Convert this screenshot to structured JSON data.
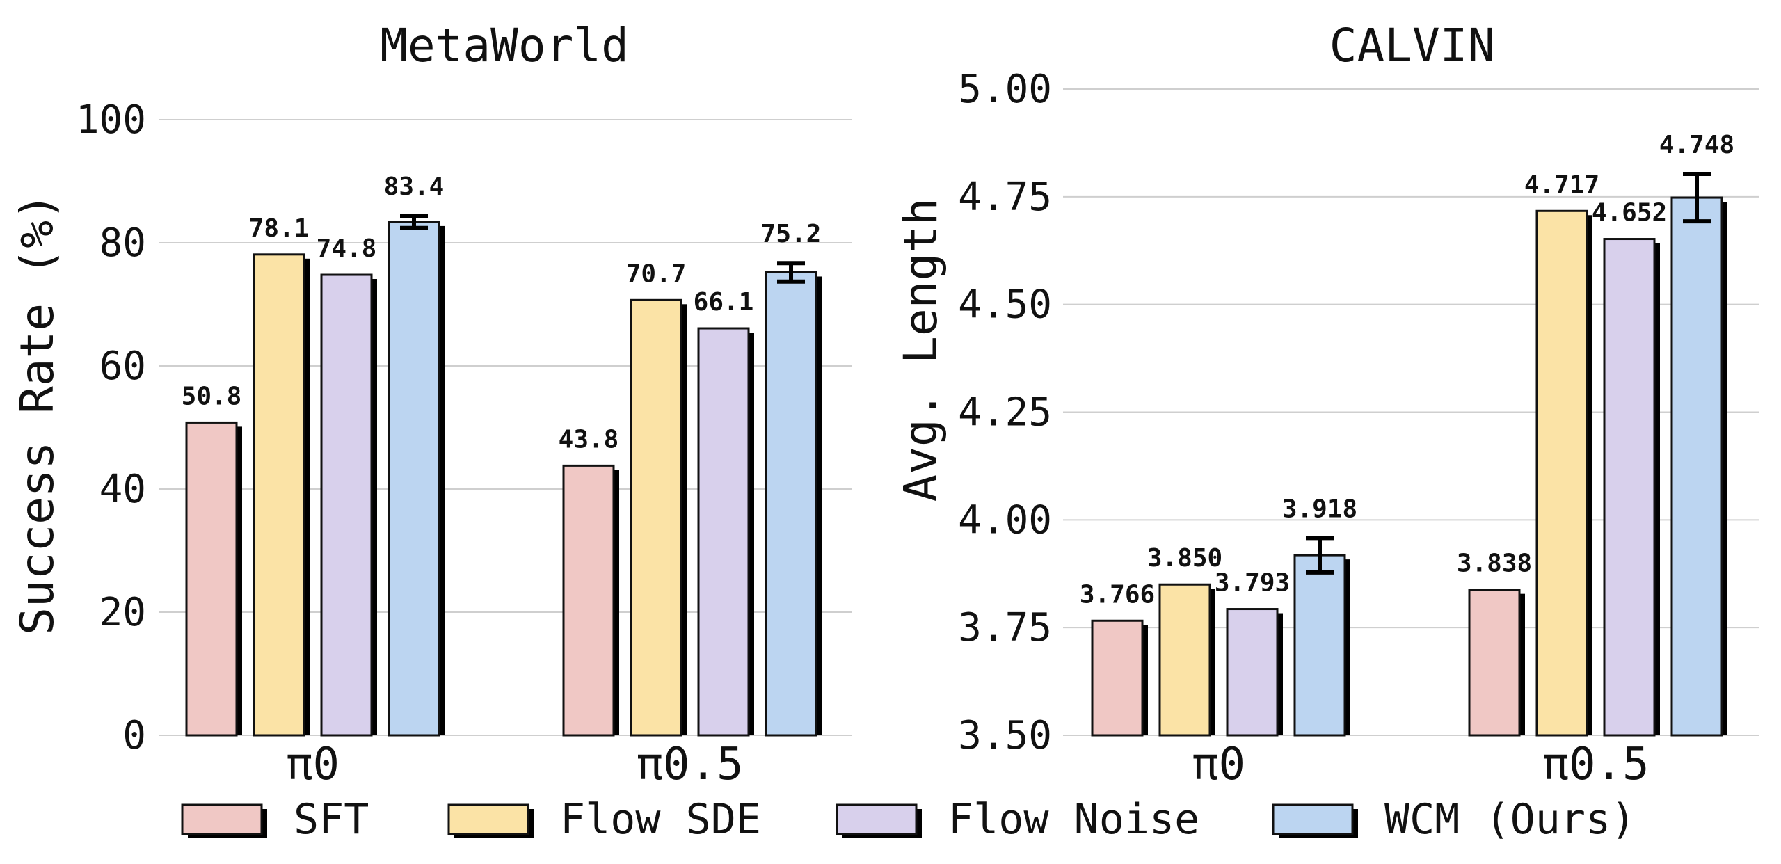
{
  "legend": [
    {
      "label": "SFT",
      "color": "#f0c8c5"
    },
    {
      "label": "Flow SDE",
      "color": "#fbe3a6"
    },
    {
      "label": "Flow Noise",
      "color": "#d8d0ec"
    },
    {
      "label": "WCM (Ours)",
      "color": "#bcd5f1"
    }
  ],
  "chart_data": [
    {
      "type": "bar",
      "title": "MetaWorld",
      "xlabel": "",
      "ylabel": "Success Rate (%)",
      "ylim": [
        0,
        100
      ],
      "yticks": [
        "0",
        "20",
        "40",
        "60",
        "80",
        "100"
      ],
      "ytick_values": [
        0,
        20,
        40,
        60,
        80,
        100
      ],
      "grid": true,
      "categories": [
        "π0",
        "π0.5"
      ],
      "series": [
        {
          "name": "SFT",
          "values": [
            50.8,
            43.8
          ],
          "labels": [
            "50.8",
            "43.8"
          ]
        },
        {
          "name": "Flow SDE",
          "values": [
            78.1,
            70.7
          ],
          "labels": [
            "78.1",
            "70.7"
          ]
        },
        {
          "name": "Flow Noise",
          "values": [
            74.8,
            66.1
          ],
          "labels": [
            "74.8",
            "66.1"
          ]
        },
        {
          "name": "WCM (Ours)",
          "values": [
            83.4,
            75.2
          ],
          "labels": [
            "83.4",
            "75.2"
          ],
          "error": [
            1.0,
            1.5
          ]
        }
      ]
    },
    {
      "type": "bar",
      "title": "CALVIN",
      "xlabel": "",
      "ylabel": "Avg. Length",
      "ylim": [
        3.5,
        5.0
      ],
      "yticks": [
        "3.50",
        "3.75",
        "4.00",
        "4.25",
        "4.50",
        "4.75",
        "5.00"
      ],
      "ytick_values": [
        3.5,
        3.75,
        4.0,
        4.25,
        4.5,
        4.75,
        5.0
      ],
      "grid": true,
      "categories": [
        "π0",
        "π0.5"
      ],
      "series": [
        {
          "name": "SFT",
          "values": [
            3.766,
            3.838
          ],
          "labels": [
            "3.766",
            "3.838"
          ]
        },
        {
          "name": "Flow SDE",
          "values": [
            3.85,
            4.717
          ],
          "labels": [
            "3.850",
            "4.717"
          ]
        },
        {
          "name": "Flow Noise",
          "values": [
            3.793,
            4.652
          ],
          "labels": [
            "3.793",
            "4.652"
          ]
        },
        {
          "name": "WCM (Ours)",
          "values": [
            3.918,
            4.748
          ],
          "labels": [
            "3.918",
            "4.748"
          ],
          "error": [
            0.04,
            0.055
          ]
        }
      ]
    }
  ]
}
